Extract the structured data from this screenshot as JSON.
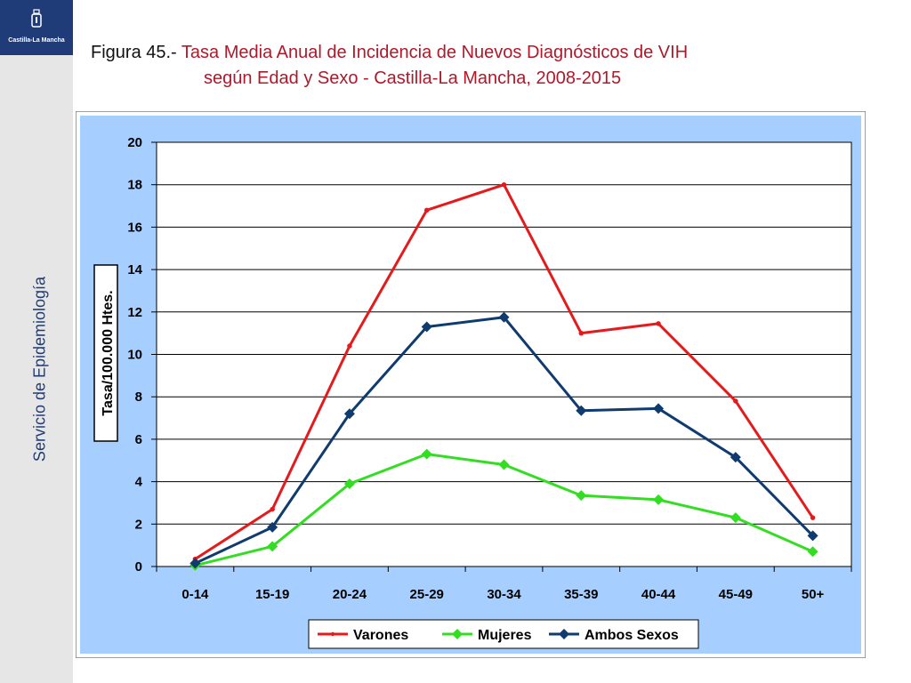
{
  "logo": {
    "text": "Castilla-La Mancha"
  },
  "sidebar": {
    "label": "Servicio de Epidemiología"
  },
  "title": {
    "prefix": "Figura 45.-",
    "line1": "Tasa Media Anual de Incidencia de Nuevos Diagnósticos de VIH",
    "line2": "según Edad y Sexo - Castilla-La Mancha, 2008-2015"
  },
  "colors": {
    "plot_bg": "#ffffff",
    "chart_bg": "#a6cfff",
    "varones": "#e41a1c",
    "mujeres": "#33dd22",
    "ambos": "#0f3b6e"
  },
  "chart_data": {
    "type": "line",
    "title": "Tasa Media Anual de Incidencia de Nuevos Diagnósticos de VIH según Edad y Sexo - Castilla-La Mancha, 2008-2015",
    "xlabel": "",
    "ylabel": "Tasa/100.000 Htes.",
    "ylim": [
      0,
      20
    ],
    "yticks": [
      "0",
      "2",
      "4",
      "6",
      "8",
      "10",
      "12",
      "14",
      "16",
      "18",
      "20"
    ],
    "grid": true,
    "legend_position": "bottom",
    "categories": [
      "0-14",
      "15-19",
      "20-24",
      "25-29",
      "30-34",
      "35-39",
      "40-44",
      "45-49",
      "50+"
    ],
    "series": [
      {
        "name": "Varones",
        "marker": "circle",
        "values": [
          0.35,
          2.7,
          10.4,
          16.8,
          18.0,
          11.0,
          11.45,
          7.8,
          2.3
        ]
      },
      {
        "name": "Mujeres",
        "marker": "diamond",
        "values": [
          0.05,
          0.95,
          3.9,
          5.3,
          4.8,
          3.35,
          3.15,
          2.3,
          0.7
        ]
      },
      {
        "name": "Ambos Sexos",
        "marker": "diamond",
        "values": [
          0.15,
          1.85,
          7.2,
          11.3,
          11.75,
          7.35,
          7.45,
          5.15,
          1.45
        ]
      }
    ]
  }
}
